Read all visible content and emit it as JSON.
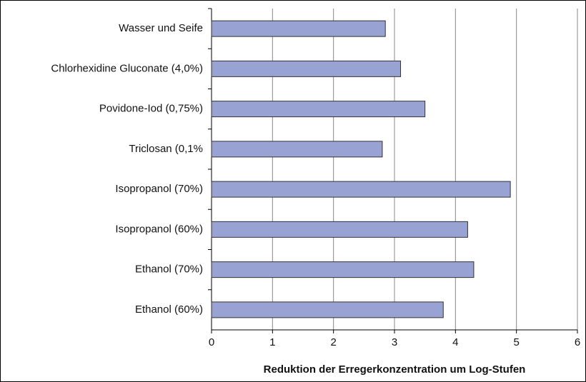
{
  "chart_data": {
    "type": "bar",
    "orientation": "horizontal",
    "xlabel": "Reduktion der Erregerkonzentration um Log-Stufen",
    "categories": [
      "Wasser und Seife",
      "Chlorhexidine Gluconate (4,0%)",
      "Povidone-Iod (0,75%)",
      "Triclosan (0,1%",
      "Isopropanol (70%)",
      "Isopropanol (60%)",
      "Ethanol (70%)",
      "Ethanol (60%)"
    ],
    "values": [
      2.85,
      3.1,
      3.5,
      2.8,
      4.9,
      4.2,
      4.3,
      3.8
    ],
    "color": "#99a3d3",
    "xlim": [
      0,
      6
    ],
    "xticks": [
      0,
      1,
      2,
      3,
      4,
      5,
      6
    ],
    "grid": true
  }
}
